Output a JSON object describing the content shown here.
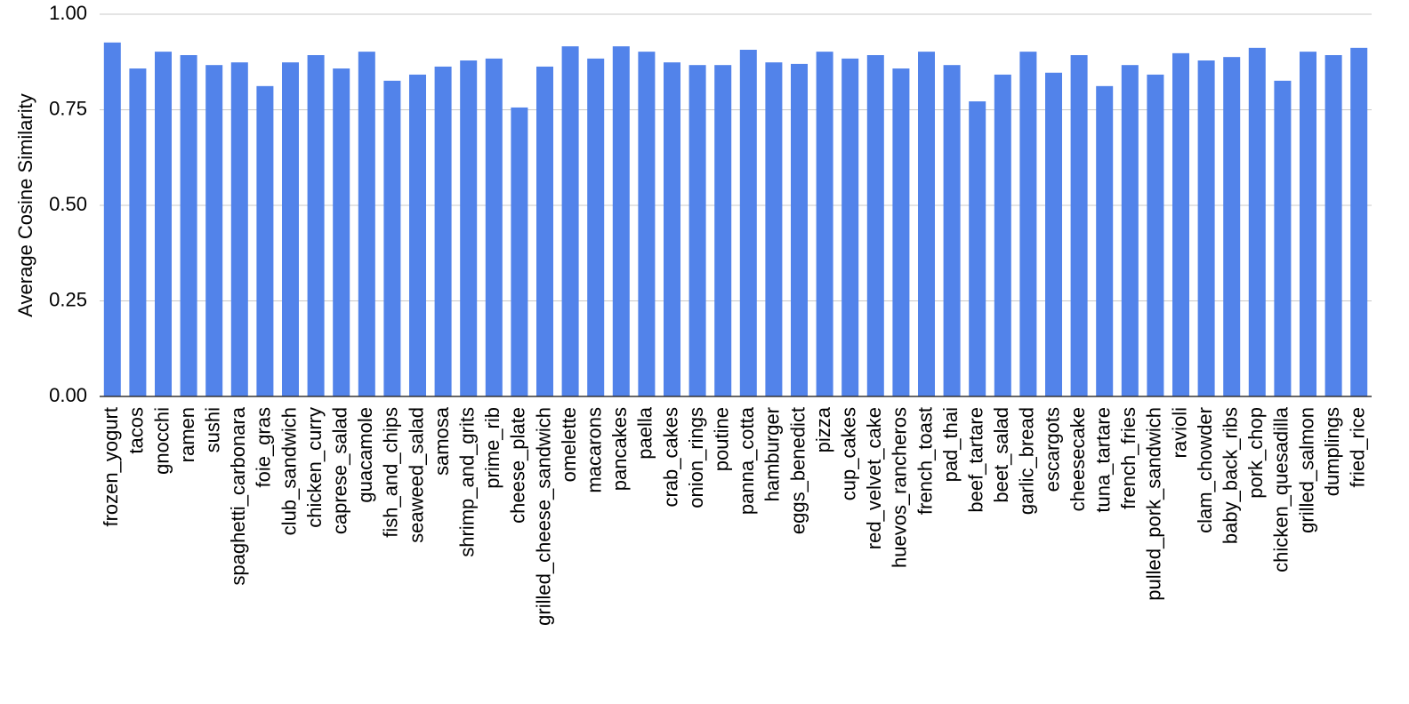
{
  "chart_data": {
    "type": "bar",
    "y_label": "Average Cosine Similarity",
    "categories": [
      "frozen_yogurt",
      "tacos",
      "gnocchi",
      "ramen",
      "sushi",
      "spaghetti_carbonara",
      "foie_gras",
      "club_sandwich",
      "chicken_curry",
      "caprese_salad",
      "guacamole",
      "fish_and_chips",
      "seaweed_salad",
      "samosa",
      "shrimp_and_grits",
      "prime_rib",
      "cheese_plate",
      "grilled_cheese_sandwich",
      "omelette",
      "macarons",
      "pancakes",
      "paella",
      "crab_cakes",
      "onion_rings",
      "poutine",
      "panna_cotta",
      "hamburger",
      "eggs_benedict",
      "pizza",
      "cup_cakes",
      "red_velvet_cake",
      "huevos_rancheros",
      "french_toast",
      "pad_thai",
      "beef_tartare",
      "beet_salad",
      "garlic_bread",
      "escargots",
      "cheesecake",
      "tuna_tartare",
      "french_fries",
      "pulled_pork_sandwich",
      "ravioli",
      "clam_chowder",
      "baby_back_ribs",
      "pork_chop",
      "chicken_quesadilla",
      "grilled_salmon",
      "dumplings",
      "fried_rice"
    ],
    "values": [
      0.926,
      0.858,
      0.902,
      0.893,
      0.867,
      0.874,
      0.812,
      0.874,
      0.893,
      0.858,
      0.902,
      0.826,
      0.842,
      0.863,
      0.879,
      0.884,
      0.756,
      0.863,
      0.916,
      0.884,
      0.916,
      0.902,
      0.874,
      0.867,
      0.867,
      0.907,
      0.874,
      0.87,
      0.902,
      0.884,
      0.893,
      0.858,
      0.902,
      0.867,
      0.772,
      0.842,
      0.902,
      0.847,
      0.893,
      0.812,
      0.867,
      0.842,
      0.898,
      0.879,
      0.888,
      0.912,
      0.826,
      0.902,
      0.893,
      0.912
    ],
    "color": "#5283ea",
    "ylim": [
      0,
      1
    ],
    "yticks": [
      {
        "value": 0,
        "label": "0.00"
      },
      {
        "value": 0.25,
        "label": "0.25"
      },
      {
        "value": 0.5,
        "label": "0.50"
      },
      {
        "value": 0.75,
        "label": "0.75"
      },
      {
        "value": 1,
        "label": "1.00"
      }
    ],
    "grid": true
  }
}
